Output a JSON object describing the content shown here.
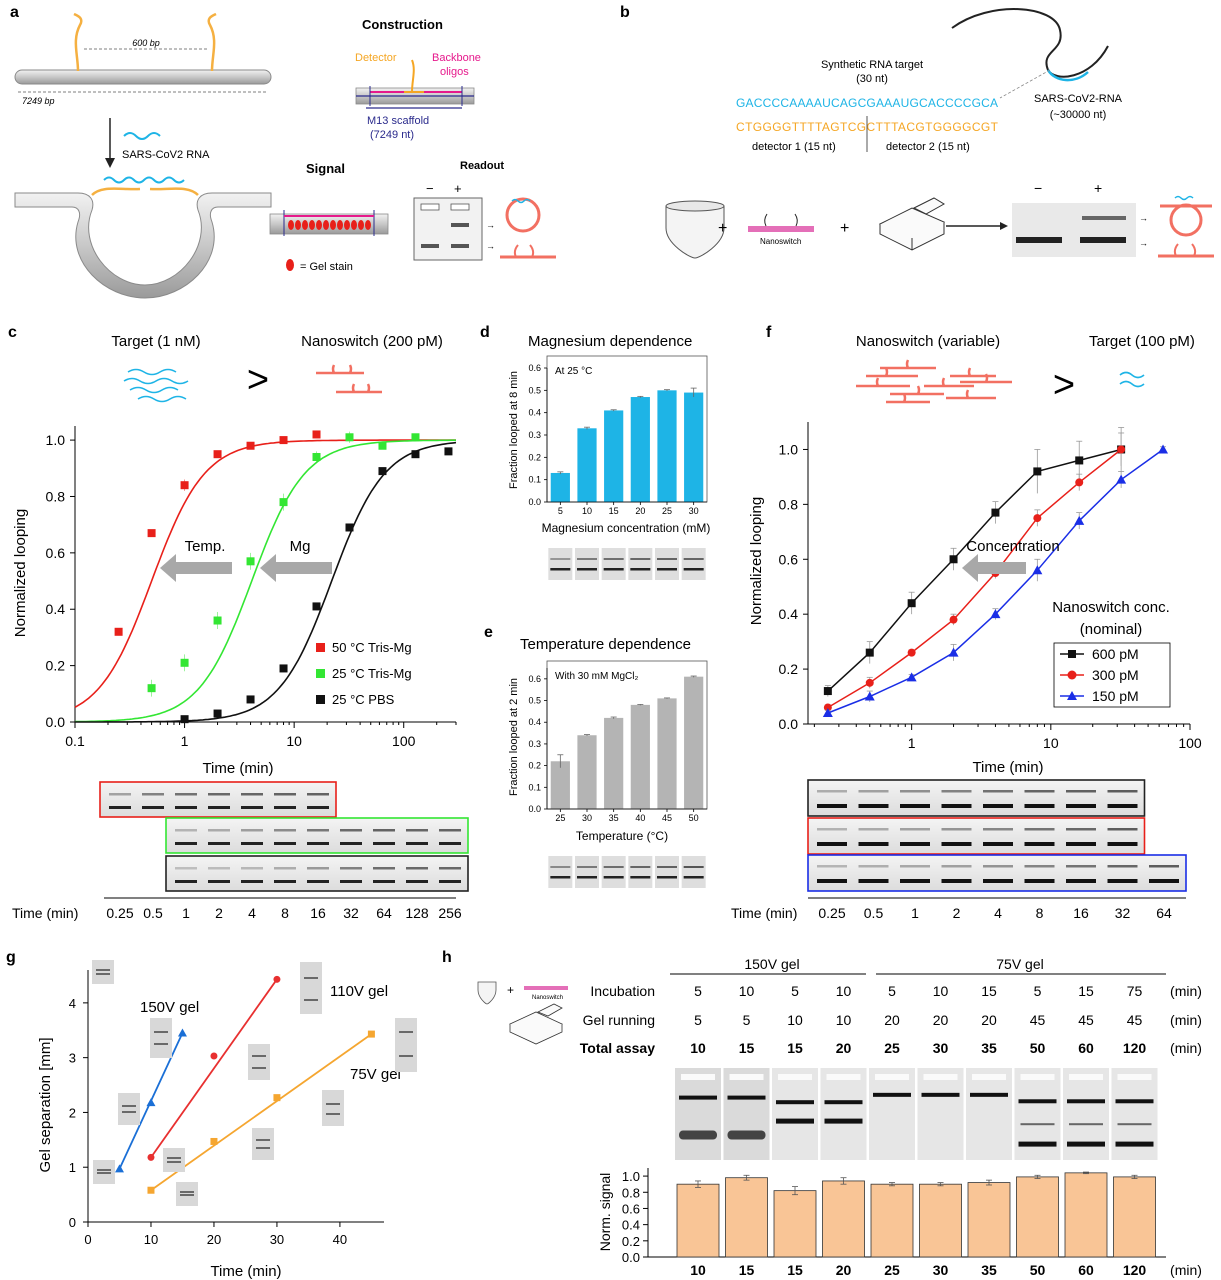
{
  "panels": {
    "a": {
      "letter": "a",
      "dim_600": "600 bp",
      "dim_7249": "7249 bp",
      "rna_label": "SARS-CoV2 RNA",
      "construction_title": "Construction",
      "detector": "Detector",
      "backbone1": "Backbone",
      "backbone2": "oligos",
      "m13_1": "M13 scaffold",
      "m13_2": "(7249 nt)",
      "signal_title": "Signal",
      "readout_title": "Readout",
      "minus": "−",
      "plus": "+",
      "gel_stain": "= Gel stain"
    },
    "b": {
      "letter": "b",
      "synthetic1": "Synthetic RNA target",
      "synthetic2": "(30 nt)",
      "seq_top": "GACCCCAAAAUCAGCGAAAUGCACCCCGCA",
      "seq_bottom": "CTGGGGTTTTAGTCGCTTTACGTGGGGCGT",
      "det1": "detector 1 (15 nt)",
      "det2": "detector 2 (15 nt)",
      "sars1": "SARS-CoV2-RNA",
      "sars2": "(~30000 nt)",
      "nanoswitch": "Nanoswitch",
      "minus": "−",
      "plus": "+"
    },
    "h_icons": {
      "nanoswitch": "Nanoswitch"
    }
  },
  "colors": {
    "red": "#e8201a",
    "green": "#33e633",
    "black": "#111111",
    "cyan": "#1eb4e6",
    "gray_bar": "#b4b4b4",
    "salmon": "#f27062",
    "orange_seq": "#f5a623",
    "magenta": "#e6198c",
    "navy": "#2a2a8c",
    "blue": "#1a2ee6",
    "orange_g": "#f5a630",
    "peach": "#f9c596"
  },
  "chart_data": [
    {
      "panel": "c",
      "type": "scatter",
      "header_left": "Target (1 nM)",
      "header_right": "Nanoswitch (200 pM)",
      "header_symbol": ">",
      "xlabel": "Time (min)",
      "ylabel": "Normalized looping",
      "xscale": "log",
      "xlim": [
        0.1,
        300
      ],
      "ylim": [
        0,
        1.05
      ],
      "xticks": [
        "0.1",
        "1",
        "10",
        "100"
      ],
      "yticks": [
        "0.0",
        "0.2",
        "0.4",
        "0.6",
        "0.8",
        "1.0"
      ],
      "arrows": [
        "Temp.",
        "Mg"
      ],
      "series": [
        {
          "name": "50 °C Tris-Mg",
          "color": "#e8201a",
          "x": [
            0.25,
            0.5,
            1,
            2,
            4,
            8,
            16
          ],
          "y": [
            0.32,
            0.67,
            0.84,
            0.95,
            0.98,
            1.0,
            1.02
          ],
          "err": [
            0.01,
            0.01,
            0.02,
            0.01,
            0.01,
            0.01,
            0.01
          ]
        },
        {
          "name": "25 °C Tris-Mg",
          "color": "#33e633",
          "x": [
            0.5,
            1,
            2,
            4,
            8,
            16,
            32,
            64,
            128
          ],
          "y": [
            0.12,
            0.21,
            0.36,
            0.57,
            0.78,
            0.94,
            1.01,
            0.98,
            1.01
          ],
          "err": [
            0.03,
            0.03,
            0.03,
            0.03,
            0.03,
            0.02,
            0.02,
            0.01,
            0.01
          ]
        },
        {
          "name": "25 °C PBS",
          "color": "#111111",
          "x": [
            1,
            2,
            4,
            8,
            16,
            32,
            64,
            128,
            256
          ],
          "y": [
            0.01,
            0.03,
            0.08,
            0.19,
            0.41,
            0.69,
            0.89,
            0.95,
            0.96
          ],
          "err": [
            0,
            0,
            0,
            0,
            0,
            0,
            0,
            0,
            0
          ]
        }
      ],
      "gel_axis_label": "Time (min)",
      "gel_lanes": [
        "0.25",
        "0.5",
        "1",
        "2",
        "4",
        "8",
        "16",
        "32",
        "64",
        "128",
        "256"
      ]
    },
    {
      "panel": "d",
      "type": "bar",
      "title": "Magnesium dependence",
      "note": "At 25 °C",
      "xlabel": "Magnesium concentration (mM)",
      "ylabel": "Fraction looped at 8 min",
      "categories": [
        "5",
        "10",
        "15",
        "20",
        "25",
        "30"
      ],
      "values": [
        0.13,
        0.33,
        0.41,
        0.47,
        0.5,
        0.49
      ],
      "err": [
        0.005,
        0.005,
        0.003,
        0.003,
        0.003,
        0.02
      ],
      "ylim": [
        0,
        0.6
      ],
      "yticks": [
        "0.0",
        "0.1",
        "0.2",
        "0.3",
        "0.4",
        "0.5",
        "0.6"
      ]
    },
    {
      "panel": "e",
      "type": "bar",
      "title": "Temperature dependence",
      "note": "With 30 mM MgCl₂",
      "xlabel": "Temperature (°C)",
      "ylabel": "Fraction looped at 2 min",
      "categories": [
        "25",
        "30",
        "35",
        "40",
        "45",
        "50"
      ],
      "values": [
        0.22,
        0.34,
        0.42,
        0.48,
        0.51,
        0.61
      ],
      "err": [
        0.03,
        0.003,
        0.004,
        0.002,
        0.002,
        0.003
      ],
      "ylim": [
        0,
        0.65
      ],
      "yticks": [
        "0.0",
        "0.1",
        "0.2",
        "0.3",
        "0.4",
        "0.5",
        "0.6"
      ]
    },
    {
      "panel": "f",
      "type": "line",
      "header_left": "Nanoswitch (variable)",
      "header_right": "Target (100 pM)",
      "header_symbol": ">",
      "xlabel": "Time (min)",
      "ylabel": "Normalized looping",
      "xscale": "log",
      "xlim": [
        0.2,
        100
      ],
      "ylim": [
        0,
        1.1
      ],
      "xticks": [
        "1",
        "10",
        "100"
      ],
      "yticks": [
        "0.0",
        "0.2",
        "0.4",
        "0.6",
        "0.8",
        "1.0"
      ],
      "arrow": "Concentration",
      "legend_title1": "Nanoswitch conc.",
      "legend_title2": "(nominal)",
      "series": [
        {
          "name": "600 pM",
          "color": "#111111",
          "marker": "square",
          "x": [
            0.25,
            0.5,
            1,
            2,
            4,
            8,
            16,
            32
          ],
          "y": [
            0.12,
            0.26,
            0.44,
            0.6,
            0.77,
            0.92,
            0.96,
            1.0
          ],
          "err": [
            0.02,
            0.04,
            0.04,
            0.04,
            0.04,
            0.08,
            0.07,
            0.08
          ]
        },
        {
          "name": "300 pM",
          "color": "#e8201a",
          "marker": "circle",
          "x": [
            0.25,
            0.5,
            1,
            2,
            4,
            8,
            16,
            32
          ],
          "y": [
            0.06,
            0.15,
            0.26,
            0.38,
            0.55,
            0.75,
            0.88,
            1.0
          ],
          "err": [
            0.01,
            0.02,
            0.01,
            0.02,
            0.02,
            0.03,
            0.03,
            0.06
          ]
        },
        {
          "name": "150 pM",
          "color": "#1a2ee6",
          "marker": "triangle",
          "x": [
            0.25,
            0.5,
            1,
            2,
            4,
            8,
            16,
            32,
            64
          ],
          "y": [
            0.04,
            0.1,
            0.17,
            0.26,
            0.4,
            0.56,
            0.74,
            0.89,
            1.0
          ],
          "err": [
            0.01,
            0.02,
            0.01,
            0.03,
            0.02,
            0.04,
            0.03,
            0.03,
            0.01
          ]
        }
      ],
      "gel_axis_label": "Time (min)",
      "gel_lanes": [
        "0.25",
        "0.5",
        "1",
        "2",
        "4",
        "8",
        "16",
        "32",
        "64"
      ]
    },
    {
      "panel": "g",
      "type": "scatter",
      "xlabel": "Time (min)",
      "ylabel": "Gel separation [mm]",
      "xlim": [
        0,
        47
      ],
      "ylim": [
        0,
        4.6
      ],
      "xticks": [
        "0",
        "10",
        "20",
        "30",
        "40"
      ],
      "yticks": [
        "0",
        "1",
        "2",
        "3",
        "4"
      ],
      "series": [
        {
          "name": "150V gel",
          "color": "#1a6fd6",
          "marker": "triangle",
          "x": [
            5,
            10,
            15
          ],
          "y": [
            0.97,
            2.18,
            3.45
          ]
        },
        {
          "name": "110V gel",
          "color": "#e83030",
          "marker": "circle",
          "x": [
            10,
            20,
            30
          ],
          "y": [
            1.18,
            3.03,
            4.43
          ]
        },
        {
          "name": "75V gel",
          "color": "#f5a630",
          "marker": "square",
          "x": [
            10,
            20,
            30,
            45
          ],
          "y": [
            0.58,
            1.47,
            2.27,
            3.43
          ]
        }
      ]
    },
    {
      "panel": "h",
      "type": "bar",
      "group_labels": [
        "150V gel",
        "75V gel"
      ],
      "row_labels": [
        "Incubation",
        "Gel running",
        "Total assay"
      ],
      "unit": "(min)",
      "incubation": [
        "5",
        "10",
        "5",
        "10",
        "5",
        "10",
        "15",
        "5",
        "15",
        "75"
      ],
      "gel_running": [
        "5",
        "5",
        "10",
        "10",
        "20",
        "20",
        "20",
        "45",
        "45",
        "45"
      ],
      "categories": [
        "10",
        "15",
        "15",
        "20",
        "25",
        "30",
        "35",
        "50",
        "60",
        "120"
      ],
      "values": [
        0.9,
        0.98,
        0.82,
        0.94,
        0.9,
        0.9,
        0.92,
        0.99,
        1.04,
        0.99
      ],
      "err": [
        0.04,
        0.03,
        0.05,
        0.04,
        0.02,
        0.02,
        0.03,
        0.02,
        0.01,
        0.02
      ],
      "ylabel": "Norm. signal",
      "ylim": [
        0,
        1.1
      ],
      "yticks": [
        "0.0",
        "0.2",
        "0.4",
        "0.6",
        "0.8",
        "1.0"
      ]
    }
  ]
}
